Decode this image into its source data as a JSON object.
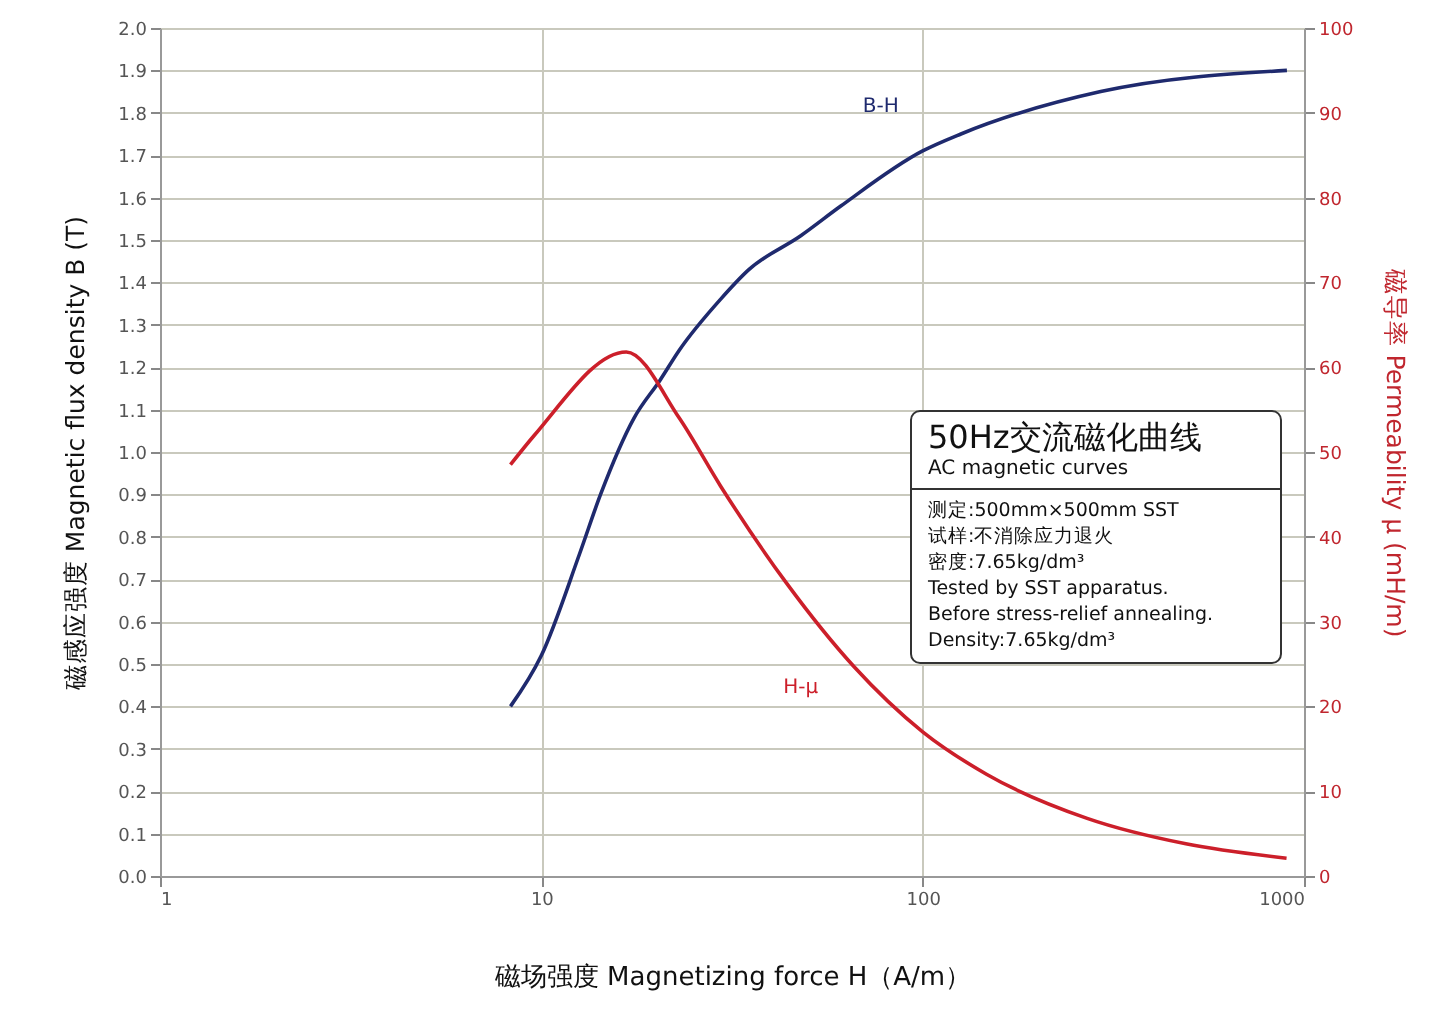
{
  "chart_data": {
    "type": "line",
    "xlabel": "磁场强度    Magnetizing force H（A/m）",
    "ylabel": "磁感应强度  Magnetic flux density B (T)",
    "y2label": "磁导率  Permeability μ (mH/m)",
    "log": "x",
    "grid": true,
    "marker": "none",
    "line_style": "solid",
    "xlim": [
      1,
      1000
    ],
    "xticks": [
      1,
      10,
      100,
      1000
    ],
    "ylim": [
      0,
      2
    ],
    "yticks": [
      {
        "value": 0,
        "label": "0.0"
      },
      0.1,
      0.2,
      0.3,
      0.4,
      0.5,
      0.6,
      0.7,
      0.8,
      0.9,
      {
        "value": 1,
        "label": "1.0"
      },
      1.1,
      1.2,
      1.3,
      1.4,
      1.5,
      1.6,
      1.7,
      1.8,
      1.9,
      {
        "value": 2,
        "label": "2.0"
      }
    ],
    "y2lim": [
      0,
      100
    ],
    "y2ticks": [
      0,
      10,
      20,
      30,
      40,
      50,
      60,
      70,
      80,
      90,
      100
    ],
    "series": [
      {
        "name": "B-H",
        "color": "#1f2a6e",
        "x": [
          8.3,
          10,
          12.6,
          14.3,
          17.5,
          20.5,
          23,
          29.5,
          35,
          47.9,
          61,
          100,
          126,
          293,
          902
        ],
        "values": [
          0.4,
          0.52,
          0.76,
          0.9,
          1.08,
          1.17,
          1.24,
          1.36,
          1.43,
          1.51,
          1.58,
          1.71,
          1.75,
          1.85,
          1.9
        ]
      },
      {
        "name": "H-μ",
        "color": "#cc1f2a",
        "axis": "y2",
        "x": [
          8.3,
          9.6,
          16.7,
          23,
          29.5,
          44,
          66,
          100,
          147,
          270,
          490,
          900
        ],
        "values": [
          48.5,
          52,
          61.8,
          54,
          46,
          34.5,
          24.7,
          17,
          12,
          6.8,
          3.8,
          2.1
        ]
      }
    ],
    "annotations": [
      "50Hz交流磁化曲线",
      "AC magnetic curves",
      "测定:500mm×500mm SST",
      "试样:不消除应力退火",
      "密度:7.65kg/dm³",
      "Tested by SST apparatus.",
      "Before stress-relief annealing.",
      "Density:7.65kg/dm³"
    ]
  }
}
